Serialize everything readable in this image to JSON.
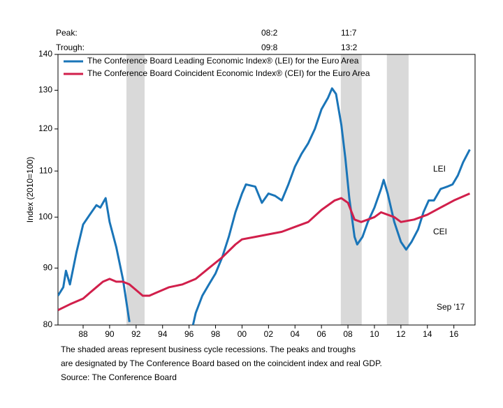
{
  "chart_data": {
    "type": "line",
    "y_label": "Index (2010=100)",
    "log_scale": true,
    "ylim": [
      80,
      140
    ],
    "yticks": [
      80,
      90,
      100,
      110,
      120,
      130,
      140
    ],
    "xlim": [
      1986.6,
      2018.1
    ],
    "xticks": [
      {
        "value": 1988.5,
        "label": "88"
      },
      {
        "value": 1990.5,
        "label": "90"
      },
      {
        "value": 1992.5,
        "label": "92"
      },
      {
        "value": 1994.5,
        "label": "94"
      },
      {
        "value": 1996.5,
        "label": "96"
      },
      {
        "value": 1998.5,
        "label": "98"
      },
      {
        "value": 2000.5,
        "label": "00"
      },
      {
        "value": 2002.5,
        "label": "02"
      },
      {
        "value": 2004.5,
        "label": "04"
      },
      {
        "value": 2006.5,
        "label": "06"
      },
      {
        "value": 2008.5,
        "label": "08"
      },
      {
        "value": 2010.5,
        "label": "10"
      },
      {
        "value": 2012.5,
        "label": "12"
      },
      {
        "value": 2014.5,
        "label": "14"
      },
      {
        "value": 2016.5,
        "label": "16"
      }
    ],
    "recession_color": "#d9d9d9",
    "recessions": [
      {
        "start": 1991.77,
        "end": 1993.14
      },
      {
        "start": 2007.96,
        "end": 2009.54
      },
      {
        "start": 2011.44,
        "end": 2013.08
      }
    ],
    "peak_label": "Peak:",
    "trough_label": "Trough:",
    "peak_trough": [
      {
        "peak": "08:2",
        "trough": "09:8"
      },
      {
        "peak": "11:7",
        "trough": "13:2"
      }
    ],
    "series": [
      {
        "name": "The Conference Board Leading Economic Index® (LEI) for the Euro Area",
        "color": "#1a75b8",
        "x": [
          1986.6,
          1987.0,
          1987.2,
          1987.5,
          1988.0,
          1988.5,
          1989.0,
          1989.5,
          1989.8,
          1990.2,
          1990.5,
          1991.0,
          1991.5,
          1992.0,
          1992.2,
          1996.5,
          1996.8,
          1997.0,
          1997.5,
          1998.0,
          1998.5,
          1999.0,
          1999.5,
          2000.0,
          2000.5,
          2000.8,
          2001.5,
          2002.0,
          2002.5,
          2003.0,
          2003.5,
          2004.0,
          2004.5,
          2005.0,
          2005.5,
          2006.0,
          2006.5,
          2007.0,
          2007.3,
          2007.6,
          2008.0,
          2008.3,
          2008.6,
          2009.0,
          2009.2,
          2009.6,
          2010.0,
          2010.5,
          2011.0,
          2011.2,
          2011.5,
          2012.0,
          2012.5,
          2012.9,
          2013.3,
          2013.8,
          2014.2,
          2014.6,
          2015.0,
          2015.5,
          2016.0,
          2016.4,
          2016.8,
          2017.2,
          2017.7
        ],
        "values": [
          85,
          86.5,
          89.5,
          87,
          93,
          98.5,
          100.5,
          102.5,
          102,
          104,
          99,
          94,
          88,
          80.5,
          null,
          null,
          80,
          82,
          85,
          87,
          89,
          92,
          96,
          101,
          105,
          107,
          106.5,
          103,
          105,
          104.5,
          103.5,
          107,
          111,
          114,
          116.5,
          120,
          125,
          128,
          130.5,
          129,
          121,
          113,
          104,
          96,
          94.5,
          96,
          99,
          102,
          106,
          108,
          105,
          99,
          95,
          93.5,
          95,
          97.5,
          101,
          103.5,
          103.5,
          106,
          106.5,
          107,
          109,
          112,
          115
        ]
      },
      {
        "name": "The Conference Board Coincident Economic Index® (CEI) for the Euro Area",
        "color": "#d11f4b",
        "x": [
          1986.6,
          1987.5,
          1988.5,
          1989.0,
          1989.5,
          1990.0,
          1990.5,
          1991.0,
          1991.5,
          1992.0,
          1992.5,
          1993.0,
          1993.5,
          1994.0,
          1995.0,
          1996.0,
          1997.0,
          1998.0,
          1999.0,
          2000.0,
          2000.5,
          2001.5,
          2002.5,
          2003.5,
          2004.5,
          2005.5,
          2006.5,
          2007.5,
          2008.0,
          2008.5,
          2009.0,
          2009.5,
          2010.5,
          2011.0,
          2012.0,
          2012.5,
          2013.5,
          2014.5,
          2015.5,
          2016.5,
          2017.7
        ],
        "values": [
          82.5,
          83.5,
          84.5,
          85.5,
          86.5,
          87.5,
          88,
          87.5,
          87.5,
          87,
          86,
          85,
          85,
          85.5,
          86.5,
          87,
          88,
          90,
          92,
          94.5,
          95.5,
          96,
          96.5,
          97,
          98,
          99,
          101.5,
          103.5,
          104,
          103,
          99.5,
          99,
          100,
          101,
          100,
          99,
          99.5,
          100.5,
          102,
          103.5,
          105
        ]
      }
    ],
    "annotations": [
      "LEI",
      "CEI",
      "Sep '17"
    ],
    "notes": [
      "The shaded areas represent business cycle recessions. The peaks and troughs",
      "are designated by The Conference Board based on the coincident index and real GDP.",
      "Source: The Conference Board"
    ]
  }
}
